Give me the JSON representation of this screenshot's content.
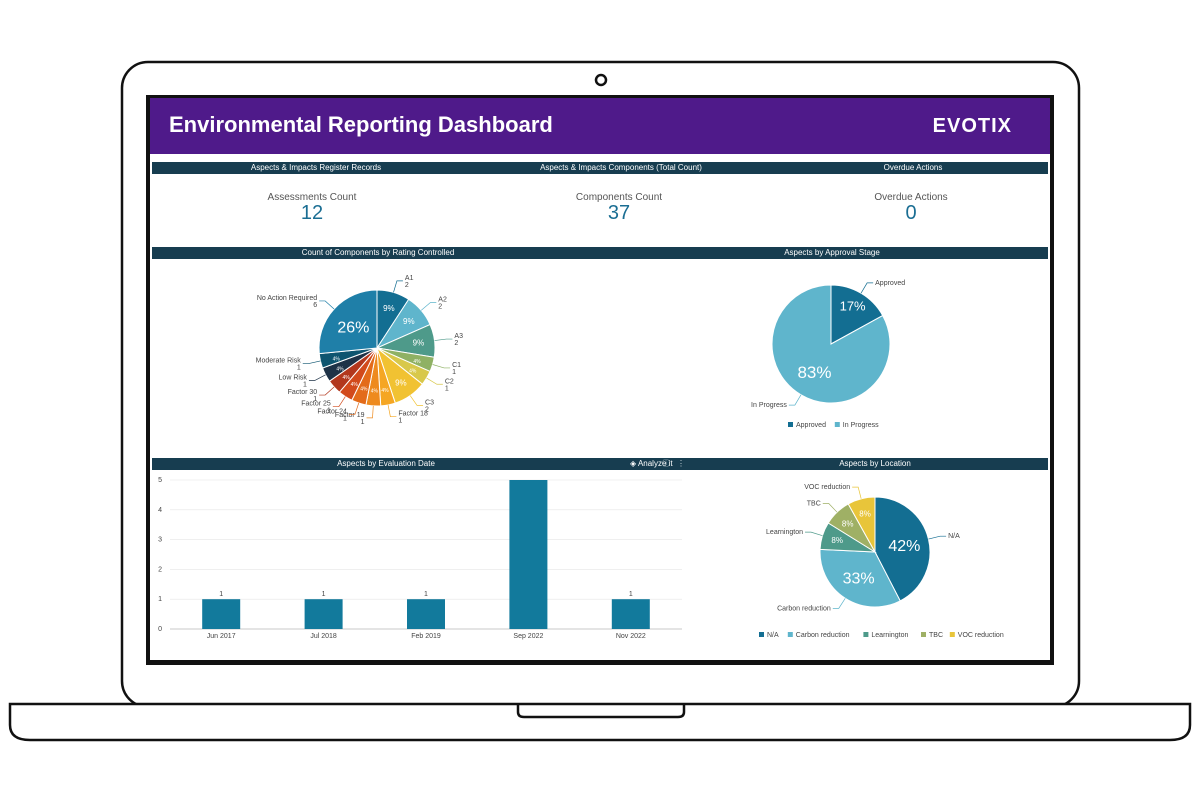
{
  "dashboard": {
    "title": "Environmental Reporting Dashboard",
    "logo": "EVOTIX"
  },
  "sections": {
    "register": "Aspects & Impacts Register Records",
    "components": "Aspects & Impacts Components (Total Count)",
    "overdue": "Overdue Actions",
    "rating": "Count of Components by Rating Controlled",
    "approval": "Aspects by Approval Stage",
    "evaluation": "Aspects by Evaluation Date",
    "location": "Aspects by Location"
  },
  "kpis": [
    {
      "label": "Assessments Count",
      "value": "12"
    },
    {
      "label": "Components Count",
      "value": "37"
    },
    {
      "label": "Overdue Actions",
      "value": "0"
    }
  ],
  "toolbar": {
    "analyze_label": "Analyze it"
  },
  "colors": {
    "header": "#4f1a8a",
    "section_bar": "#173d50",
    "kpi_value": "#1b6e93",
    "bar": "#127a9c"
  },
  "chart_data": [
    {
      "type": "pie",
      "title": "Count of Components by Rating Controlled",
      "slices": [
        {
          "label": "A1",
          "count": "2",
          "value": 9,
          "display": "9%",
          "color": "#136e92"
        },
        {
          "label": "A2",
          "count": "2",
          "value": 9,
          "display": "9%",
          "color": "#5fb5cc"
        },
        {
          "label": "A3",
          "count": "2",
          "value": 9,
          "display": "9%",
          "color": "#4e9a8a"
        },
        {
          "label": "C1",
          "count": "1",
          "value": 4,
          "display": "4%",
          "color": "#8fb164"
        },
        {
          "label": "C2",
          "count": "1",
          "value": 4,
          "display": "4%",
          "color": "#d8c84a"
        },
        {
          "label": "C3",
          "count": "2",
          "value": 9,
          "display": "9%",
          "color": "#f1c232"
        },
        {
          "label": "Factor 18",
          "count": "1",
          "value": 4,
          "display": "4%",
          "color": "#f5a623"
        },
        {
          "label": "Factor 19",
          "count": "1",
          "value": 4,
          "display": "4%",
          "color": "#ee8a1e"
        },
        {
          "label": "Factor 24",
          "count": "1",
          "value": 4,
          "display": "4%",
          "color": "#e36b1a"
        },
        {
          "label": "Factor 25",
          "count": "1",
          "value": 4,
          "display": "4%",
          "color": "#d24a1c"
        },
        {
          "label": "Factor 30",
          "count": "1",
          "value": 4,
          "display": "4%",
          "color": "#b2371d"
        },
        {
          "label": "Low Risk",
          "count": "1",
          "value": 4,
          "display": "4%",
          "color": "#1e3247"
        },
        {
          "label": "Moderate Risk",
          "count": "1",
          "value": 4,
          "display": "4%",
          "color": "#0e5570"
        },
        {
          "label": "No Action Required",
          "count": "6",
          "value": 26,
          "display": "26%",
          "color": "#1f7fa8"
        }
      ]
    },
    {
      "type": "pie",
      "title": "Aspects by Approval Stage",
      "legend": "bottom",
      "slices": [
        {
          "label": "Approved",
          "value": 17,
          "display": "17%",
          "color": "#136e92"
        },
        {
          "label": "In Progress",
          "value": 83,
          "display": "83%",
          "color": "#5fb5cc"
        }
      ]
    },
    {
      "type": "bar",
      "title": "Aspects by Evaluation Date",
      "categories": [
        "Jun 2017",
        "Jul 2018",
        "Feb 2019",
        "Sep 2022",
        "Nov 2022"
      ],
      "values": [
        1,
        1,
        1,
        5,
        1
      ],
      "data_labels": [
        "1",
        "1",
        "1",
        "",
        "1"
      ],
      "ylim": [
        0,
        5
      ],
      "yticks": [
        "0",
        "1",
        "2",
        "3",
        "4",
        "5"
      ],
      "color": "#127a9c"
    },
    {
      "type": "pie",
      "title": "Aspects by Location",
      "legend": "bottom",
      "slices": [
        {
          "label": "N/A",
          "value": 42,
          "display": "42%",
          "color": "#136e92"
        },
        {
          "label": "Carbon reduction",
          "value": 33,
          "display": "33%",
          "color": "#5fb5cc"
        },
        {
          "label": "Learnington",
          "value": 8,
          "display": "8%",
          "color": "#4e9a8a"
        },
        {
          "label": "TBC",
          "value": 8,
          "display": "8%",
          "color": "#9fb065"
        },
        {
          "label": "VOC reduction",
          "value": 8,
          "display": "8%",
          "color": "#e8c53a"
        }
      ]
    }
  ]
}
